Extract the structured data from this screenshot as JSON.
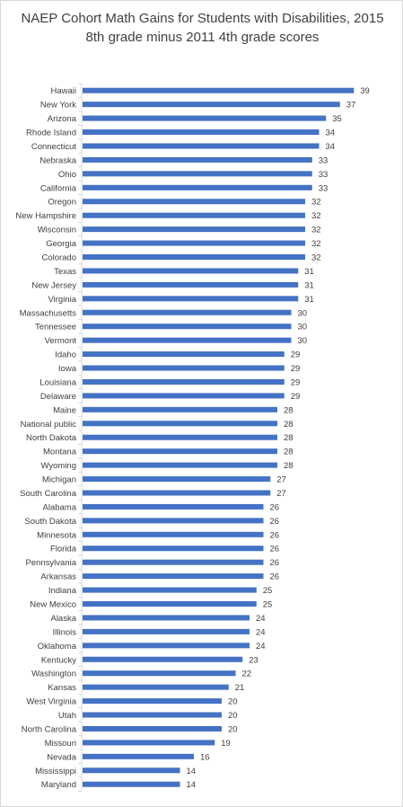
{
  "chart_data": {
    "type": "bar",
    "orientation": "horizontal",
    "title": "NAEP Cohort Math Gains for Students with Disabilities, 2015 8th grade minus 2011 4th grade scores",
    "xlabel": "",
    "ylabel": "",
    "xlim": [
      0,
      40
    ],
    "grid": false,
    "legend": "none",
    "bar_color": "#4472c4",
    "data_labels": true,
    "categories": [
      "Hawaii",
      "New York",
      "Arizona",
      "Rhode Island",
      "Connecticut",
      "Nebraska",
      "Ohio",
      "California",
      "Oregon",
      "New Hampshire",
      "Wisconsin",
      "Georgia",
      "Colorado",
      "Texas",
      "New Jersey",
      "Virginia",
      "Massachusetts",
      "Tennessee",
      "Vermont",
      "Idaho",
      "Iowa",
      "Louisiana",
      "Delaware",
      "Maine",
      "National public",
      "North Dakota",
      "Montana",
      "Wyoming",
      "Michigan",
      "South Carolina",
      "Alabama",
      "South Dakota",
      "Minnesota",
      "Florida",
      "Pennsylvania",
      "Arkansas",
      "Indiana",
      "New Mexico",
      "Alaska",
      "Illinois",
      "Oklahoma",
      "Kentucky",
      "Washington",
      "Kansas",
      "West Virginia",
      "Utah",
      "North Carolina",
      "Missouri",
      "Nevada",
      "Mississippi",
      "Maryland"
    ],
    "values": [
      39,
      37,
      35,
      34,
      34,
      33,
      33,
      33,
      32,
      32,
      32,
      32,
      32,
      31,
      31,
      31,
      30,
      30,
      30,
      29,
      29,
      29,
      29,
      28,
      28,
      28,
      28,
      28,
      27,
      27,
      26,
      26,
      26,
      26,
      26,
      26,
      25,
      25,
      24,
      24,
      24,
      23,
      22,
      21,
      20,
      20,
      20,
      19,
      16,
      14,
      14
    ]
  }
}
